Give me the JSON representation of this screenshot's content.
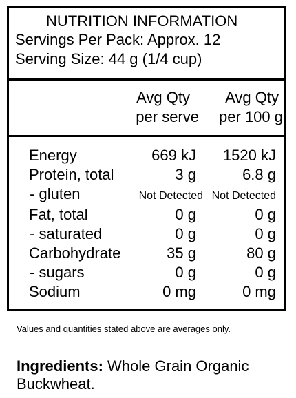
{
  "header": {
    "title": "NUTRITION INFORMATION",
    "servings_line": "Servings Per Pack: Approx. 12",
    "serving_size_line": "Serving Size: 44 g (1/4 cup)"
  },
  "columns": {
    "per_serve": [
      "Avg Qty",
      "per serve"
    ],
    "per_100g": [
      "Avg Qty",
      "per 100 g"
    ]
  },
  "rows": [
    {
      "label": "Energy",
      "per_serve": "669 kJ",
      "per_100g": "1520 kJ"
    },
    {
      "label": "Protein, total",
      "per_serve": "3 g",
      "per_100g": "6.8 g"
    },
    {
      "label": " - gluten",
      "per_serve": "Not Detected",
      "per_100g": "Not Detected"
    },
    {
      "label": "Fat, total",
      "per_serve": "0 g",
      "per_100g": "0 g"
    },
    {
      "label": " - saturated",
      "per_serve": "0 g",
      "per_100g": "0 g"
    },
    {
      "label": "Carbohydrate",
      "per_serve": "35 g",
      "per_100g": "80 g"
    },
    {
      "label": " - sugars",
      "per_serve": "0 g",
      "per_100g": "0 g"
    },
    {
      "label": "Sodium",
      "per_serve": "0 mg",
      "per_100g": "0 mg"
    }
  ],
  "footnote": "Values and quantities stated above are averages only.",
  "ingredients": {
    "label": "Ingredients:",
    "text": "Whole Grain Organic Buckwheat."
  }
}
